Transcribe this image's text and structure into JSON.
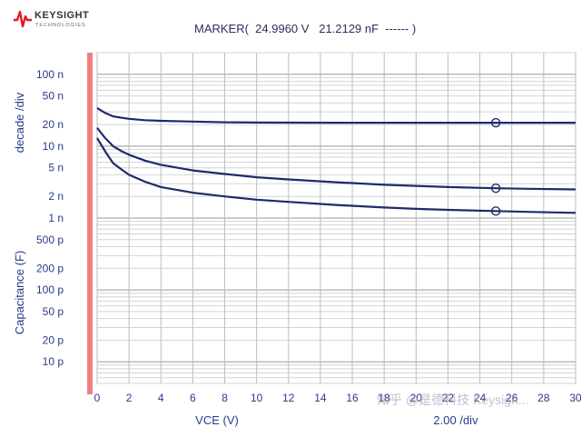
{
  "brand": {
    "name": "KEYSIGHT",
    "sub": "TECHNOLOGIES"
  },
  "marker": {
    "text": "MARKER(  24.9960 V   21.2129 nF  ------ )"
  },
  "watermark": "知乎 @是德科技 Keysigh...",
  "chart_data": {
    "type": "line",
    "title": "",
    "xlabel": "VCE (V)",
    "ylabel_top": "decade /div",
    "ylabel_bottom": "Capacitance (F)",
    "x_scale_label": "2.00 /div",
    "xlim": [
      0,
      30
    ],
    "ylim": [
      5e-12,
      2e-07
    ],
    "y_scale": "log",
    "grid": true,
    "x_ticks": [
      "0",
      "2",
      "4",
      "6",
      "8",
      "10",
      "12",
      "14",
      "16",
      "18",
      "20",
      "22",
      "24",
      "26",
      "28",
      "30"
    ],
    "y_ticks": [
      {
        "label": "100 n",
        "value": 1e-07
      },
      {
        "label": "50 n",
        "value": 5e-08
      },
      {
        "label": "20 n",
        "value": 2e-08
      },
      {
        "label": "10 n",
        "value": 1e-08
      },
      {
        "label": "5 n",
        "value": 5e-09
      },
      {
        "label": "2 n",
        "value": 2e-09
      },
      {
        "label": "1 n",
        "value": 1e-09
      },
      {
        "label": "500 p",
        "value": 5e-10
      },
      {
        "label": "200 p",
        "value": 2e-10
      },
      {
        "label": "100 p",
        "value": 1e-10
      },
      {
        "label": "50 p",
        "value": 5e-11
      },
      {
        "label": "20 p",
        "value": 2e-11
      },
      {
        "label": "10 p",
        "value": 1e-11
      }
    ],
    "series": [
      {
        "x": [
          0,
          0.5,
          1,
          2,
          3,
          4,
          6,
          8,
          10,
          15,
          20,
          25,
          30
        ],
        "values": [
          3.4e-08,
          2.9e-08,
          2.6e-08,
          2.4e-08,
          2.3e-08,
          2.25e-08,
          2.2e-08,
          2.15e-08,
          2.13e-08,
          2.12e-08,
          2.12e-08,
          2.12e-08,
          2.12e-08
        ],
        "marker_x": 25
      },
      {
        "x": [
          0,
          0.5,
          1,
          1.5,
          2,
          3,
          4,
          6,
          8,
          10,
          12,
          15,
          18,
          20,
          22,
          25,
          27,
          30
        ],
        "values": [
          1.8e-08,
          1.3e-08,
          1e-08,
          8.6e-09,
          7.6e-09,
          6.3e-09,
          5.5e-09,
          4.6e-09,
          4.1e-09,
          3.7e-09,
          3.45e-09,
          3.15e-09,
          2.9e-09,
          2.8e-09,
          2.7e-09,
          2.6e-09,
          2.55e-09,
          2.5e-09
        ],
        "marker_x": 25
      },
      {
        "x": [
          0,
          0.5,
          1,
          1.5,
          2,
          3,
          4,
          6,
          8,
          10,
          12,
          15,
          18,
          20,
          22,
          25,
          27,
          30
        ],
        "values": [
          1.3e-08,
          8.5e-09,
          5.8e-09,
          4.8e-09,
          4e-09,
          3.2e-09,
          2.7e-09,
          2.25e-09,
          2e-09,
          1.8e-09,
          1.68e-09,
          1.52e-09,
          1.4e-09,
          1.34e-09,
          1.3e-09,
          1.25e-09,
          1.22e-09,
          1.18e-09
        ],
        "marker_x": 25
      }
    ]
  }
}
